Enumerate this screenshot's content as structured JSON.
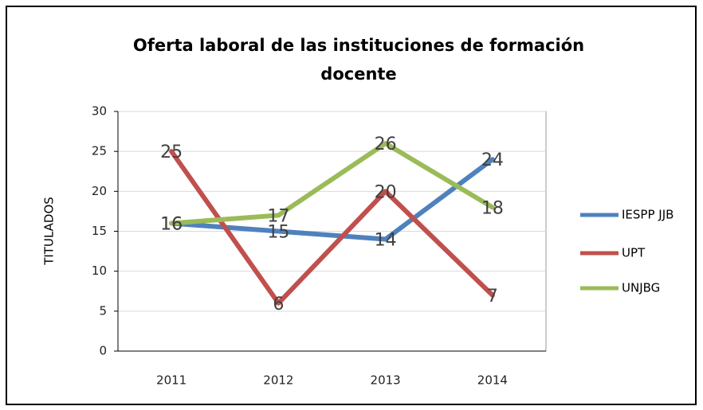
{
  "chart_data": {
    "type": "line",
    "title": [
      "Oferta laboral  de las instituciones de formación",
      "docente"
    ],
    "y_label": "TITULADOS",
    "categories": [
      "2011",
      "2012",
      "2013",
      "2014"
    ],
    "series": [
      {
        "name": "IESPP JJB",
        "color": "#4f81bd",
        "values": [
          16,
          15,
          14,
          24
        ]
      },
      {
        "name": "UPT",
        "color": "#c0504d",
        "values": [
          25,
          6,
          20,
          7
        ]
      },
      {
        "name": "UNJBG",
        "color": "#9bbb59",
        "values": [
          16,
          17,
          26,
          18
        ]
      }
    ],
    "ylim": [
      0,
      30
    ],
    "yticks": [
      0,
      5,
      10,
      15,
      20,
      25,
      30
    ],
    "grid": true,
    "legend": "right"
  }
}
